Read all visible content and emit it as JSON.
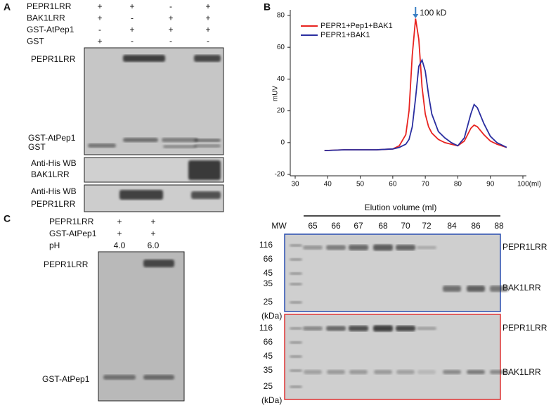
{
  "panel_a": {
    "label": "A",
    "conditions": [
      {
        "name": "PEPR1LRR",
        "signs": [
          "+",
          "+",
          "-",
          "+"
        ]
      },
      {
        "name": "BAK1LRR",
        "signs": [
          "+",
          "-",
          "+",
          "+"
        ]
      },
      {
        "name": "GST-AtPep1",
        "signs": [
          "-",
          "+",
          "+",
          "+"
        ]
      },
      {
        "name": "GST",
        "signs": [
          "+",
          "-",
          "-",
          "-"
        ]
      }
    ],
    "gel_labels": [
      "PEPR1LRR",
      "GST-AtPep1",
      "GST"
    ],
    "wb_bak1": [
      "Anti-His WB",
      "BAK1LRR"
    ],
    "wb_pepr1": [
      "Anti-His WB",
      "PEPR1LRR"
    ]
  },
  "chart_data": {
    "type": "line",
    "panel_label": "B",
    "ylabel": "mUV",
    "x": [
      39,
      45,
      50,
      55,
      60,
      62,
      64,
      65,
      66,
      67,
      68,
      69,
      70,
      71,
      72,
      74,
      76,
      78,
      80,
      82,
      84,
      85,
      86,
      88,
      90,
      92,
      95
    ],
    "series": [
      {
        "name": "PEPR1+Pep1+BAK1",
        "color": "#e8231f",
        "values": [
          -5,
          -4.5,
          -4.5,
          -4.5,
          -4,
          -2,
          5,
          20,
          55,
          78,
          65,
          35,
          18,
          10,
          6,
          2,
          0,
          -1,
          -2,
          1,
          9,
          11,
          10,
          5,
          1,
          -1,
          -3
        ]
      },
      {
        "name": "PEPR1+BAK1",
        "color": "#2a2ea0",
        "values": [
          -5,
          -4.5,
          -4.5,
          -4.5,
          -4,
          -3,
          -1,
          2,
          10,
          28,
          48,
          52,
          45,
          30,
          18,
          7,
          3,
          0,
          -2,
          3,
          18,
          24,
          22,
          12,
          4,
          0,
          -3
        ]
      }
    ],
    "xlim": [
      30,
      100
    ],
    "ylim": [
      -20,
      80
    ],
    "xticks": [
      30,
      40,
      50,
      60,
      70,
      80,
      90,
      {
        "value": 100,
        "label": "100(ml)"
      }
    ],
    "yticks": [
      -20,
      0,
      20,
      40,
      60,
      80
    ],
    "annotation": {
      "text": "100 kD",
      "x": 67
    }
  },
  "panel_c": {
    "label": "C",
    "conditions": [
      {
        "name": "PEPR1LRR",
        "signs": [
          "+",
          "+"
        ]
      },
      {
        "name": "GST-AtPep1",
        "signs": [
          "+",
          "+"
        ]
      },
      {
        "name": "pH",
        "signs": [
          "4.0",
          "6.0"
        ]
      }
    ],
    "gel_labels": [
      "PEPR1LRR",
      "GST-AtPep1"
    ]
  },
  "panel_d": {
    "title": "Elution volume (ml)",
    "mw_header": "MW",
    "lanes": [
      "65",
      "66",
      "67",
      "68",
      "70",
      "72",
      "84",
      "86",
      "88"
    ],
    "markers": [
      "116",
      "66",
      "45",
      "35",
      "25"
    ],
    "unit": "(kDa)",
    "bands": [
      "PEPR1LRR",
      "BAK1LRR"
    ]
  }
}
